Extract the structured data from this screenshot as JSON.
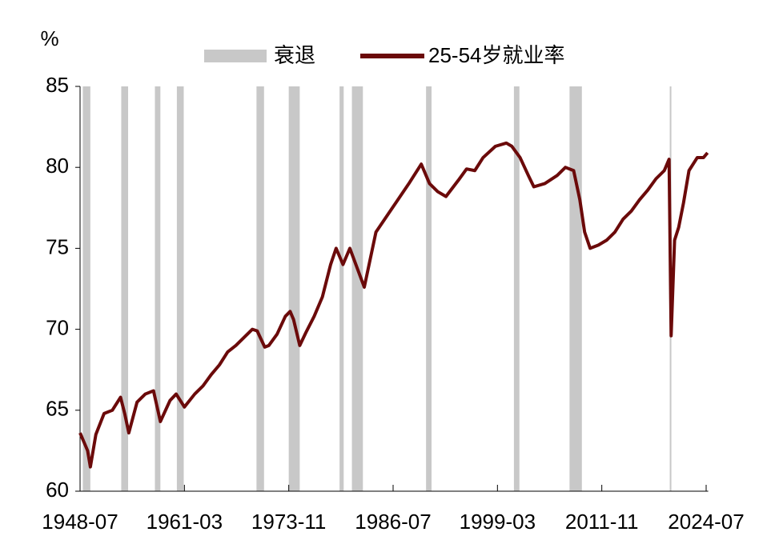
{
  "chart_data": {
    "type": "line",
    "y_label": "%",
    "xlim": [
      "1948-07",
      "2024-10"
    ],
    "xticks": [
      "1948-07",
      "1961-03",
      "1973-11",
      "1986-07",
      "1999-03",
      "2011-11",
      "2024-07"
    ],
    "ylim": [
      60,
      85
    ],
    "yticks": [
      60,
      65,
      70,
      75,
      80,
      85
    ],
    "bands": {
      "name": "衰退",
      "color": "#c8c8c8",
      "ranges": [
        [
          "1948-11",
          "1949-10"
        ],
        [
          "1953-07",
          "1954-05"
        ],
        [
          "1957-08",
          "1958-04"
        ],
        [
          "1960-04",
          "1961-02"
        ],
        [
          "1969-12",
          "1970-11"
        ],
        [
          "1973-11",
          "1975-03"
        ],
        [
          "1980-01",
          "1980-07"
        ],
        [
          "1981-07",
          "1982-11"
        ],
        [
          "1990-07",
          "1991-03"
        ],
        [
          "2001-03",
          "2001-11"
        ],
        [
          "2007-12",
          "2009-06"
        ],
        [
          "2020-02",
          "2020-04"
        ]
      ]
    },
    "x": [
      "1948-07",
      "1949-06",
      "1949-10",
      "1950-06",
      "1951-06",
      "1952-06",
      "1953-06",
      "1953-12",
      "1954-06",
      "1955-06",
      "1956-06",
      "1957-06",
      "1958-04",
      "1959-06",
      "1960-03",
      "1960-12",
      "1961-03",
      "1962-06",
      "1963-06",
      "1964-06",
      "1965-06",
      "1966-06",
      "1967-06",
      "1968-06",
      "1969-06",
      "1970-01",
      "1970-12",
      "1971-06",
      "1972-06",
      "1973-06",
      "1974-01",
      "1974-06",
      "1975-03",
      "1975-12",
      "1976-12",
      "1977-12",
      "1978-12",
      "1979-08",
      "1980-06",
      "1981-04",
      "1983-01",
      "1984-06",
      "1986-06",
      "1988-06",
      "1989-12",
      "1990-12",
      "1991-12",
      "1992-12",
      "1994-06",
      "1995-06",
      "1996-06",
      "1997-06",
      "1998-12",
      "2000-04",
      "2000-12",
      "2001-12",
      "2002-12",
      "2003-08",
      "2004-12",
      "2006-06",
      "2007-06",
      "2008-06",
      "2009-03",
      "2009-10",
      "2010-06",
      "2011-06",
      "2012-06",
      "2013-06",
      "2014-06",
      "2015-06",
      "2016-06",
      "2017-06",
      "2018-06",
      "2019-06",
      "2020-01",
      "2020-04",
      "2020-09",
      "2021-03",
      "2021-10",
      "2022-06",
      "2023-06",
      "2024-03",
      "2024-09"
    ],
    "series": [
      {
        "name": "25-54岁就业率",
        "color": "#6b0a0a",
        "values": [
          63.6,
          62.5,
          61.5,
          63.5,
          64.8,
          65.0,
          65.8,
          64.8,
          63.6,
          65.5,
          66.0,
          66.2,
          64.3,
          65.6,
          66.0,
          65.4,
          65.2,
          66.0,
          66.5,
          67.2,
          67.8,
          68.6,
          69.0,
          69.5,
          70.0,
          69.9,
          68.9,
          69.0,
          69.7,
          70.8,
          71.1,
          70.6,
          69.0,
          69.8,
          70.8,
          72.0,
          74.0,
          75.0,
          74.0,
          75.0,
          72.6,
          76.0,
          77.5,
          79.0,
          80.2,
          79.0,
          78.5,
          78.2,
          79.2,
          79.9,
          79.8,
          80.6,
          81.3,
          81.5,
          81.3,
          80.6,
          79.5,
          78.8,
          79.0,
          79.5,
          80.0,
          79.8,
          78.0,
          76.0,
          75.0,
          75.2,
          75.5,
          76.0,
          76.8,
          77.3,
          78.0,
          78.6,
          79.3,
          79.8,
          80.5,
          69.6,
          75.5,
          76.3,
          77.8,
          79.8,
          80.6,
          80.6,
          80.9
        ]
      }
    ]
  }
}
